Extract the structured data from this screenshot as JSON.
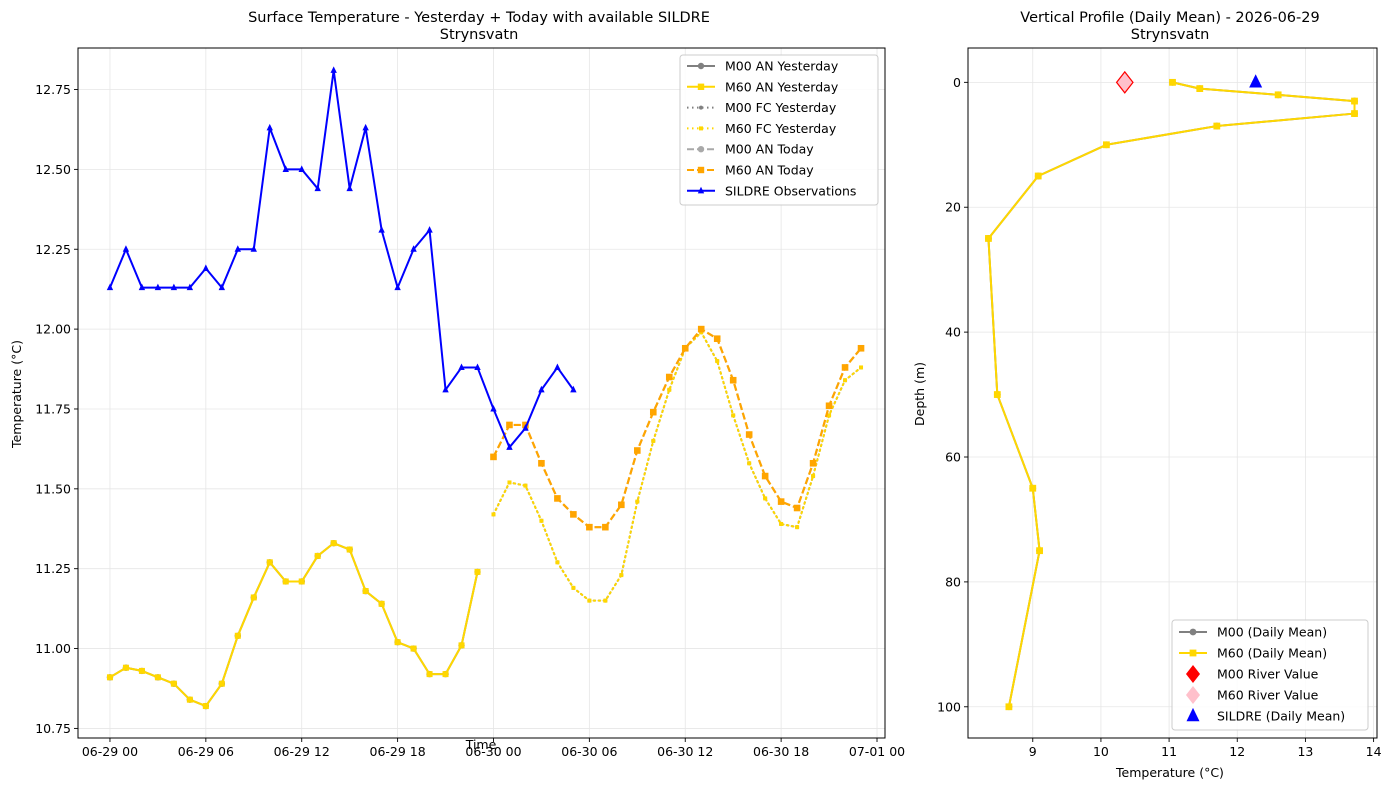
{
  "chart_data": [
    {
      "type": "line",
      "title": "Surface Temperature - Yesterday + Today with available SILDRE",
      "subtitle": "Strynsvatn",
      "xlabel": "Time",
      "ylabel": "Temperature (°C)",
      "xlim": [
        "2026-06-28 22:00",
        "2026-07-01 00:30"
      ],
      "ylim": [
        10.72,
        12.88
      ],
      "xticks": [
        "06-29 00",
        "06-29 06",
        "06-29 12",
        "06-29 18",
        "06-30 00",
        "06-30 06",
        "06-30 12",
        "06-30 18",
        "07-01 00"
      ],
      "yticks": [
        "10.75",
        "11.00",
        "11.25",
        "11.50",
        "11.75",
        "12.00",
        "12.25",
        "12.50",
        "12.75"
      ],
      "grid": true,
      "legend": "top-right",
      "series": [
        {
          "name": "M00 AN Yesterday",
          "color": "#808080",
          "style": "solid",
          "marker": "circle",
          "x": [
            "2026-06-29 00:00",
            "2026-06-29 01:00",
            "2026-06-29 02:00",
            "2026-06-29 03:00",
            "2026-06-29 04:00",
            "2026-06-29 05:00",
            "2026-06-29 06:00",
            "2026-06-29 07:00",
            "2026-06-29 08:00",
            "2026-06-29 09:00",
            "2026-06-29 10:00",
            "2026-06-29 11:00",
            "2026-06-29 12:00",
            "2026-06-29 13:00",
            "2026-06-29 14:00",
            "2026-06-29 15:00",
            "2026-06-29 16:00",
            "2026-06-29 17:00",
            "2026-06-29 18:00",
            "2026-06-29 19:00",
            "2026-06-29 20:00",
            "2026-06-29 21:00",
            "2026-06-29 22:00",
            "2026-06-29 23:00"
          ],
          "y": [
            10.91,
            10.94,
            10.93,
            10.91,
            10.89,
            10.84,
            10.82,
            10.89,
            11.04,
            11.16,
            11.27,
            11.21,
            11.21,
            11.29,
            11.33,
            11.31,
            11.18,
            11.14,
            11.02,
            11.0,
            10.92,
            10.92,
            11.01,
            11.24
          ]
        },
        {
          "name": "M60 AN Yesterday",
          "color": "#ffd700",
          "style": "solid",
          "marker": "square",
          "x": [
            "2026-06-29 00:00",
            "2026-06-29 01:00",
            "2026-06-29 02:00",
            "2026-06-29 03:00",
            "2026-06-29 04:00",
            "2026-06-29 05:00",
            "2026-06-29 06:00",
            "2026-06-29 07:00",
            "2026-06-29 08:00",
            "2026-06-29 09:00",
            "2026-06-29 10:00",
            "2026-06-29 11:00",
            "2026-06-29 12:00",
            "2026-06-29 13:00",
            "2026-06-29 14:00",
            "2026-06-29 15:00",
            "2026-06-29 16:00",
            "2026-06-29 17:00",
            "2026-06-29 18:00",
            "2026-06-29 19:00",
            "2026-06-29 20:00",
            "2026-06-29 21:00",
            "2026-06-29 22:00",
            "2026-06-29 23:00"
          ],
          "y": [
            10.91,
            10.94,
            10.93,
            10.91,
            10.89,
            10.84,
            10.82,
            10.89,
            11.04,
            11.16,
            11.27,
            11.21,
            11.21,
            11.29,
            11.33,
            11.31,
            11.18,
            11.14,
            11.02,
            11.0,
            10.92,
            10.92,
            11.01,
            11.24
          ]
        },
        {
          "name": "M00 FC Yesterday",
          "color": "#808080",
          "style": "dotted",
          "marker": "circle",
          "x": [
            "2026-06-30 00:00",
            "2026-06-30 01:00",
            "2026-06-30 02:00",
            "2026-06-30 03:00",
            "2026-06-30 04:00",
            "2026-06-30 05:00",
            "2026-06-30 06:00",
            "2026-06-30 07:00",
            "2026-06-30 08:00",
            "2026-06-30 09:00",
            "2026-06-30 10:00",
            "2026-06-30 11:00",
            "2026-06-30 12:00",
            "2026-06-30 13:00",
            "2026-06-30 14:00",
            "2026-06-30 15:00",
            "2026-06-30 16:00",
            "2026-06-30 17:00",
            "2026-06-30 18:00",
            "2026-06-30 19:00",
            "2026-06-30 20:00",
            "2026-06-30 21:00",
            "2026-06-30 22:00",
            "2026-06-30 23:00"
          ],
          "y": [
            11.42,
            11.52,
            11.51,
            11.4,
            11.27,
            11.19,
            11.15,
            11.15,
            11.23,
            11.46,
            11.65,
            11.81,
            11.94,
            11.99,
            11.9,
            11.73,
            11.58,
            11.47,
            11.39,
            11.38,
            11.54,
            11.73,
            11.84,
            11.88
          ]
        },
        {
          "name": "M60 FC Yesterday",
          "color": "#ffd700",
          "style": "dotted",
          "marker": "square",
          "x": [
            "2026-06-30 00:00",
            "2026-06-30 01:00",
            "2026-06-30 02:00",
            "2026-06-30 03:00",
            "2026-06-30 04:00",
            "2026-06-30 05:00",
            "2026-06-30 06:00",
            "2026-06-30 07:00",
            "2026-06-30 08:00",
            "2026-06-30 09:00",
            "2026-06-30 10:00",
            "2026-06-30 11:00",
            "2026-06-30 12:00",
            "2026-06-30 13:00",
            "2026-06-30 14:00",
            "2026-06-30 15:00",
            "2026-06-30 16:00",
            "2026-06-30 17:00",
            "2026-06-30 18:00",
            "2026-06-30 19:00",
            "2026-06-30 20:00",
            "2026-06-30 21:00",
            "2026-06-30 22:00",
            "2026-06-30 23:00"
          ],
          "y": [
            11.42,
            11.52,
            11.51,
            11.4,
            11.27,
            11.19,
            11.15,
            11.15,
            11.23,
            11.46,
            11.65,
            11.81,
            11.94,
            11.99,
            11.9,
            11.73,
            11.58,
            11.47,
            11.39,
            11.38,
            11.54,
            11.73,
            11.84,
            11.88
          ]
        },
        {
          "name": "M00 AN Today",
          "color": "#a9a9a9",
          "style": "dashed",
          "marker": "circle",
          "x": [
            "2026-06-30 00:00",
            "2026-06-30 01:00",
            "2026-06-30 02:00",
            "2026-06-30 03:00",
            "2026-06-30 04:00",
            "2026-06-30 05:00",
            "2026-06-30 06:00",
            "2026-06-30 07:00",
            "2026-06-30 08:00",
            "2026-06-30 09:00",
            "2026-06-30 10:00",
            "2026-06-30 11:00",
            "2026-06-30 12:00",
            "2026-06-30 13:00",
            "2026-06-30 14:00",
            "2026-06-30 15:00",
            "2026-06-30 16:00",
            "2026-06-30 17:00",
            "2026-06-30 18:00",
            "2026-06-30 19:00",
            "2026-06-30 20:00",
            "2026-06-30 21:00",
            "2026-06-30 22:00",
            "2026-06-30 23:00"
          ],
          "y": [
            11.6,
            11.7,
            11.7,
            11.58,
            11.47,
            11.42,
            11.38,
            11.38,
            11.45,
            11.62,
            11.74,
            11.85,
            11.94,
            12.0,
            11.97,
            11.84,
            11.67,
            11.54,
            11.46,
            11.44,
            11.58,
            11.76,
            11.88,
            11.94
          ]
        },
        {
          "name": "M60 AN Today",
          "color": "#ffa500",
          "style": "dashed",
          "marker": "square",
          "x": [
            "2026-06-30 00:00",
            "2026-06-30 01:00",
            "2026-06-30 02:00",
            "2026-06-30 03:00",
            "2026-06-30 04:00",
            "2026-06-30 05:00",
            "2026-06-30 06:00",
            "2026-06-30 07:00",
            "2026-06-30 08:00",
            "2026-06-30 09:00",
            "2026-06-30 10:00",
            "2026-06-30 11:00",
            "2026-06-30 12:00",
            "2026-06-30 13:00",
            "2026-06-30 14:00",
            "2026-06-30 15:00",
            "2026-06-30 16:00",
            "2026-06-30 17:00",
            "2026-06-30 18:00",
            "2026-06-30 19:00",
            "2026-06-30 20:00",
            "2026-06-30 21:00",
            "2026-06-30 22:00",
            "2026-06-30 23:00"
          ],
          "y": [
            11.6,
            11.7,
            11.7,
            11.58,
            11.47,
            11.42,
            11.38,
            11.38,
            11.45,
            11.62,
            11.74,
            11.85,
            11.94,
            12.0,
            11.97,
            11.84,
            11.67,
            11.54,
            11.46,
            11.44,
            11.58,
            11.76,
            11.88,
            11.94
          ]
        },
        {
          "name": "SILDRE Observations",
          "color": "#0000ff",
          "style": "solid",
          "marker": "triangle",
          "x": [
            "2026-06-29 00:00",
            "2026-06-29 01:00",
            "2026-06-29 02:00",
            "2026-06-29 03:00",
            "2026-06-29 04:00",
            "2026-06-29 05:00",
            "2026-06-29 06:00",
            "2026-06-29 07:00",
            "2026-06-29 08:00",
            "2026-06-29 09:00",
            "2026-06-29 10:00",
            "2026-06-29 11:00",
            "2026-06-29 12:00",
            "2026-06-29 13:00",
            "2026-06-29 14:00",
            "2026-06-29 15:00",
            "2026-06-29 16:00",
            "2026-06-29 17:00",
            "2026-06-29 18:00",
            "2026-06-29 19:00",
            "2026-06-29 20:00",
            "2026-06-29 21:00",
            "2026-06-29 22:00",
            "2026-06-29 23:00",
            "2026-06-30 00:00",
            "2026-06-30 01:00",
            "2026-06-30 02:00",
            "2026-06-30 03:00",
            "2026-06-30 04:00",
            "2026-06-30 05:00"
          ],
          "y": [
            12.13,
            12.25,
            12.13,
            12.13,
            12.13,
            12.13,
            12.19,
            12.13,
            12.25,
            12.25,
            12.63,
            12.5,
            12.5,
            12.44,
            12.81,
            12.44,
            12.63,
            12.31,
            12.13,
            12.25,
            12.31,
            11.81,
            11.88,
            11.88,
            11.75,
            11.63,
            11.69,
            11.81,
            11.88,
            11.81
          ]
        }
      ]
    },
    {
      "type": "line",
      "title": "Vertical Profile (Daily Mean) - 2026-06-29",
      "subtitle": "Strynsvatn",
      "xlabel": "Temperature (°C)",
      "ylabel": "Depth (m)",
      "xlim": [
        8.05,
        14.05
      ],
      "ylim": [
        105,
        -5.5
      ],
      "xticks": [
        "9",
        "10",
        "11",
        "12",
        "13",
        "14"
      ],
      "yticks": [
        "0",
        "20",
        "40",
        "60",
        "80",
        "100"
      ],
      "grid": true,
      "legend": "bottom-right",
      "series": [
        {
          "name": "M00 (Daily Mean)",
          "color": "#808080",
          "style": "solid",
          "marker": "circle",
          "temperature": [
            11.05,
            11.45,
            12.6,
            13.72,
            13.72,
            11.7,
            10.08,
            9.08,
            8.35,
            8.48,
            9.0,
            9.1,
            8.65
          ],
          "depth": [
            0,
            1,
            2,
            3,
            5,
            7,
            10,
            15,
            25,
            50,
            65,
            75,
            100
          ]
        },
        {
          "name": "M60 (Daily Mean)",
          "color": "#ffd700",
          "style": "solid",
          "marker": "square",
          "temperature": [
            11.05,
            11.45,
            12.6,
            13.72,
            13.72,
            11.7,
            10.08,
            9.08,
            8.35,
            8.48,
            9.0,
            9.1,
            8.65
          ],
          "depth": [
            0,
            1,
            2,
            3,
            5,
            7,
            10,
            15,
            25,
            50,
            65,
            75,
            100
          ]
        },
        {
          "name": "M00 River Value",
          "color": "#ff0000",
          "marker": "diamond",
          "temperature": [
            10.35
          ],
          "depth": [
            0
          ]
        },
        {
          "name": "M60 River Value",
          "color": "#ffc0cb",
          "marker": "diamond",
          "temperature": [
            10.35
          ],
          "depth": [
            0
          ]
        },
        {
          "name": "SILDRE (Daily Mean)",
          "color": "#0000ff",
          "marker": "triangle",
          "temperature": [
            12.27
          ],
          "depth": [
            0
          ]
        }
      ]
    }
  ]
}
